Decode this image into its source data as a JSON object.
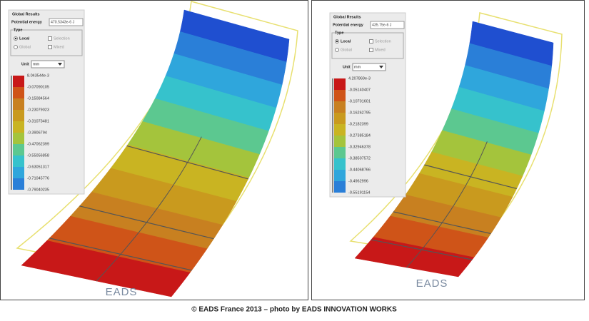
{
  "panels": [
    {
      "global_results": "Global Results",
      "potential_energy_label": "Potential energy",
      "potential_energy_value": "470.5343e-6 J",
      "type_label": "Type",
      "options": [
        "Local",
        "Selection",
        "Global",
        "Mixed"
      ],
      "unit_label": "Unit",
      "unit_value": "mm",
      "legend": [
        "8.043544e-3",
        "-0.07090105",
        "-0.15084564",
        "-0.23079023",
        "-0.31073481",
        "-0.3906794",
        "-0.47062399",
        "-0.55056858",
        "-0.63051317",
        "-0.71045776",
        "-0.79040235"
      ],
      "logo": "EADS"
    },
    {
      "global_results": "Global Results",
      "potential_energy_label": "Potential energy",
      "potential_energy_value": "435.75e-6 J",
      "type_label": "Type",
      "options": [
        "Local",
        "Selection",
        "Global",
        "Mixed"
      ],
      "unit_label": "Unit",
      "unit_value": "mm",
      "legend": [
        "4.207869e-3",
        "-0.05140407",
        "-0.10701601",
        "-0.16262795",
        "-0.2182399",
        "-0.27385184",
        "-0.32946378",
        "-0.38507572",
        "-0.44068766",
        "-0.4962996",
        "-0.55191154"
      ],
      "logo": "EADS"
    }
  ],
  "caption": "© EADS France 2013 – photo by EADS INNOVATION WORKS"
}
